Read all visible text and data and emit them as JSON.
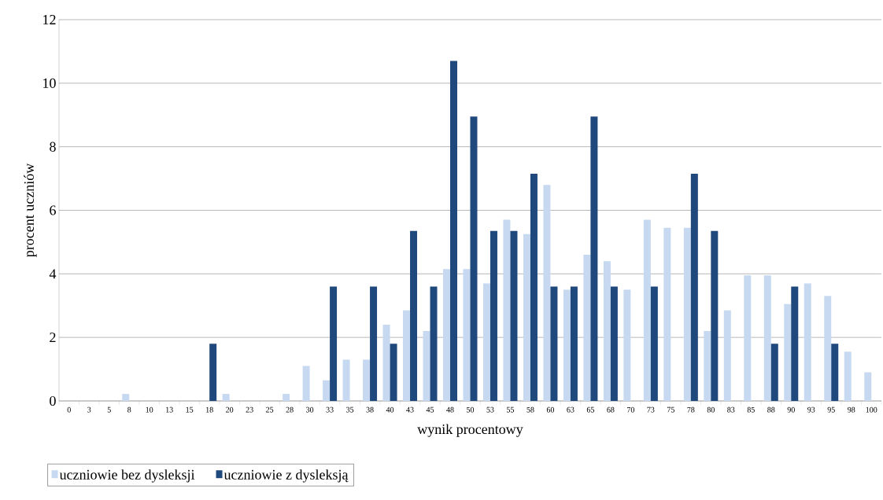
{
  "chart_data": {
    "type": "bar",
    "xlabel": "wynik procentowy",
    "ylabel": "procent uczniów",
    "categories": [
      "0",
      "3",
      "5",
      "8",
      "10",
      "13",
      "15",
      "18",
      "20",
      "23",
      "25",
      "28",
      "30",
      "33",
      "35",
      "38",
      "40",
      "43",
      "45",
      "48",
      "50",
      "53",
      "55",
      "58",
      "60",
      "63",
      "65",
      "68",
      "70",
      "73",
      "75",
      "78",
      "80",
      "83",
      "85",
      "88",
      "90",
      "93",
      "95",
      "98",
      "100"
    ],
    "series": [
      {
        "name": "uczniowie bez dysleksji",
        "color": "#c6d9f1",
        "values": [
          0,
          0,
          0,
          0.22,
          0,
          0,
          0,
          0,
          0.22,
          0,
          0,
          0.22,
          1.1,
          0.65,
          1.3,
          1.3,
          2.4,
          2.85,
          2.2,
          4.15,
          4.15,
          3.7,
          5.7,
          5.25,
          6.8,
          3.5,
          4.6,
          4.4,
          3.5,
          5.7,
          5.45,
          5.45,
          2.2,
          2.85,
          3.95,
          3.95,
          3.05,
          3.7,
          3.3,
          1.55,
          0.9
        ]
      },
      {
        "name": "uczniowie z dysleksją",
        "color": "#1f497d",
        "values": [
          0,
          0,
          0,
          0,
          0,
          0,
          0,
          1.8,
          0,
          0,
          0,
          0,
          0,
          3.6,
          0,
          3.6,
          1.8,
          5.35,
          3.6,
          10.7,
          8.95,
          5.35,
          5.35,
          7.15,
          3.6,
          3.6,
          8.95,
          3.6,
          0,
          3.6,
          0,
          7.15,
          5.35,
          0,
          0,
          1.8,
          3.6,
          0,
          1.8,
          0,
          0
        ]
      }
    ],
    "ylim": [
      0,
      12
    ],
    "yticks": [
      0,
      2,
      4,
      6,
      8,
      10,
      12
    ],
    "grid": "y",
    "legend": "bottom left"
  }
}
